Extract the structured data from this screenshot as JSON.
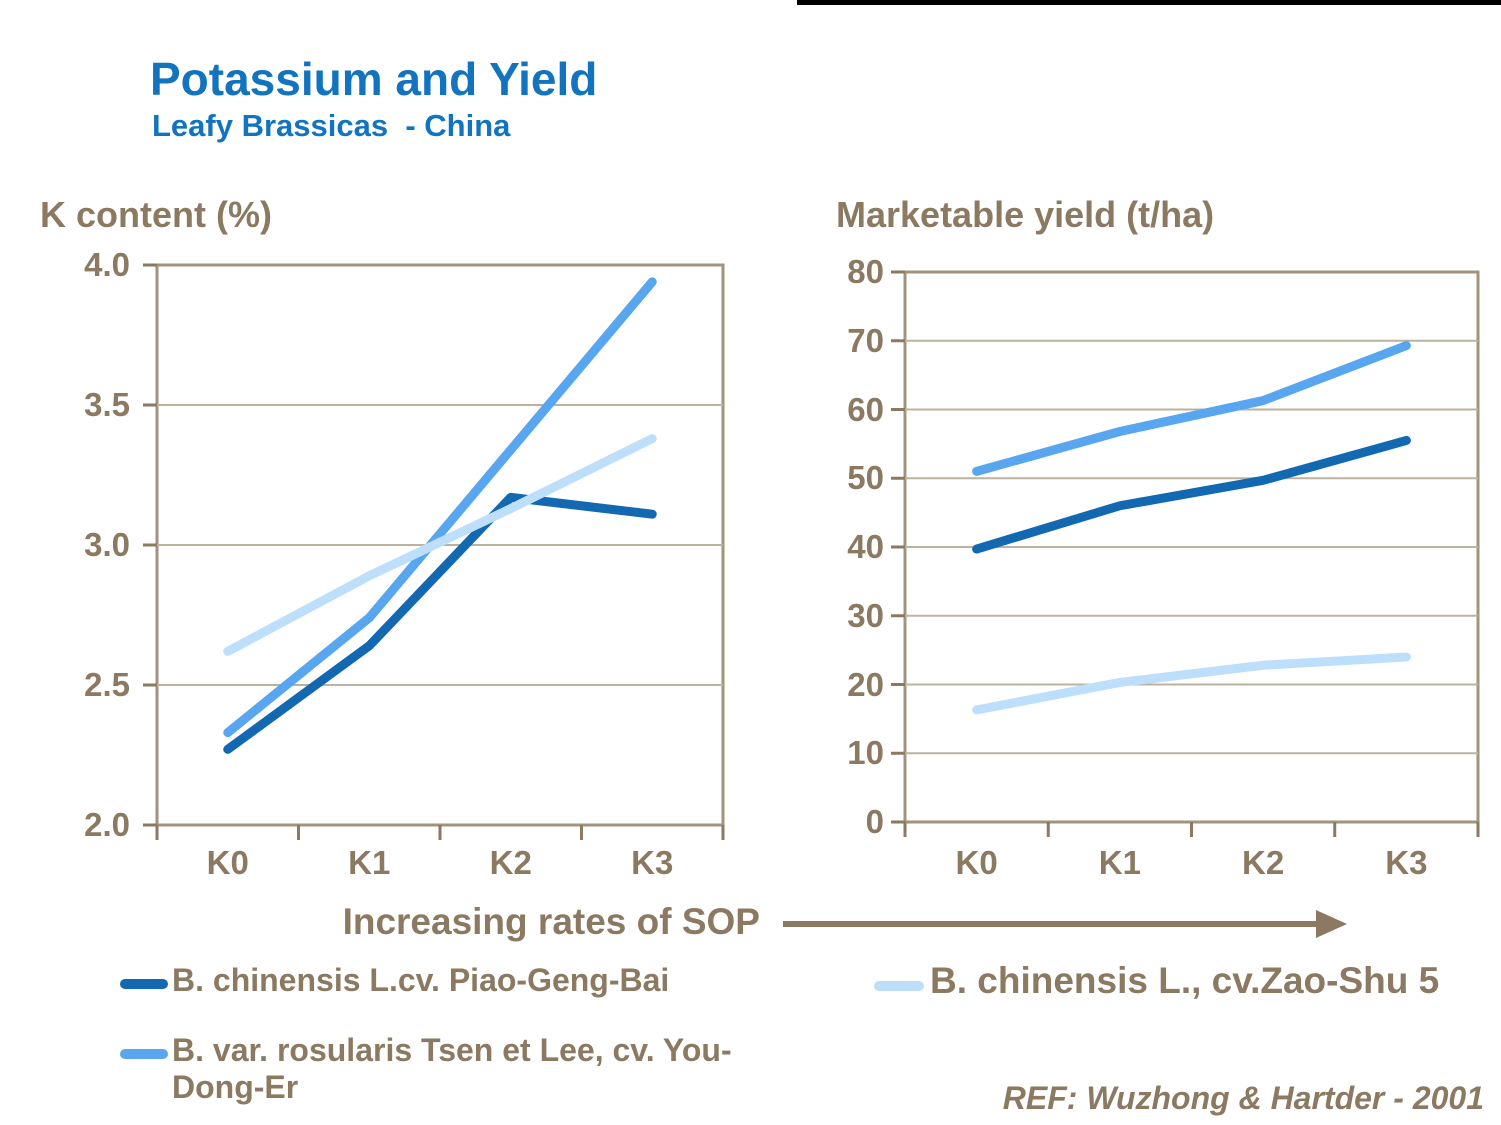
{
  "header": {
    "title": "Potassium and Yield",
    "subtitle": "Leafy Brassicas  - China"
  },
  "sop_label": "Increasing rates of SOP",
  "footer": {
    "ref": "REF: Wuzhong & Hartder - 2001"
  },
  "colors": {
    "title_blue": "#1273BF",
    "text_brown": "#8B7961",
    "dark_blue": "#1268B1",
    "medium_blue": "#58A6EF",
    "light_blue": "#BDDFFB",
    "gridline": "#BCB2A0",
    "plot_border": "#A1937D",
    "black_bar": "#000000"
  },
  "chart_data": [
    {
      "type": "line",
      "title": "K content (%)",
      "categories": [
        "K0",
        "K1",
        "K2",
        "K3"
      ],
      "series": [
        {
          "name": "B. chinensis L.cv. Piao-Geng-Bai",
          "color_key": "dark_blue",
          "values": [
            2.27,
            2.64,
            3.17,
            3.11
          ]
        },
        {
          "name": "B. var. rosularis Tsen et Lee, cv. You-Dong-Er",
          "color_key": "medium_blue",
          "values": [
            2.33,
            2.74,
            3.34,
            3.94
          ]
        },
        {
          "name": "B. chinensis L., cv.Zao-Shu 5",
          "color_key": "light_blue",
          "values": [
            2.62,
            2.89,
            3.13,
            3.38
          ]
        }
      ],
      "ylim": [
        2.0,
        4.0
      ],
      "ytick_step": 0.5,
      "y_tick_labels": [
        "4.0",
        "3.5",
        "3.0",
        "2.5",
        "2.0"
      ],
      "xlabel": "Increasing rates of SOP",
      "grid": true,
      "legend_position": "below"
    },
    {
      "type": "line",
      "title": "Marketable yield (t/ha)",
      "categories": [
        "K0",
        "K1",
        "K2",
        "K3"
      ],
      "series": [
        {
          "name": "B. chinensis L.cv. Piao-Geng-Bai",
          "color_key": "dark_blue",
          "values": [
            39.7,
            46.0,
            49.7,
            55.5
          ]
        },
        {
          "name": "B. var. rosularis Tsen et Lee, cv. You-Dong-Er",
          "color_key": "medium_blue",
          "values": [
            51.0,
            56.8,
            61.3,
            69.3
          ]
        },
        {
          "name": "B. chinensis L., cv.Zao-Shu 5",
          "color_key": "light_blue",
          "values": [
            16.3,
            20.3,
            22.8,
            24.0
          ]
        }
      ],
      "ylim": [
        0,
        80
      ],
      "ytick_step": 10,
      "y_tick_labels": [
        "80",
        "70",
        "60",
        "50",
        "40",
        "30",
        "20",
        "10",
        "0"
      ],
      "xlabel": "Increasing rates of SOP",
      "grid": true,
      "legend_position": "below"
    }
  ],
  "legend_left": [
    {
      "label": "B. chinensis L.cv. Piao-Geng-Bai",
      "lines": [
        "B. chinensis L.cv. Piao-Geng-Bai"
      ],
      "color_key": "dark_blue"
    },
    {
      "label": "B. var. rosularis Tsen et Lee, cv. You-Dong-Er",
      "lines": [
        "B. var. rosularis Tsen et Lee, cv. You-",
        "Dong-Er"
      ],
      "color_key": "medium_blue"
    }
  ],
  "legend_right": [
    {
      "label": "B. chinensis L., cv.Zao-Shu 5",
      "lines": [
        "B. chinensis L., cv.Zao-Shu 5"
      ],
      "color_key": "light_blue"
    }
  ]
}
